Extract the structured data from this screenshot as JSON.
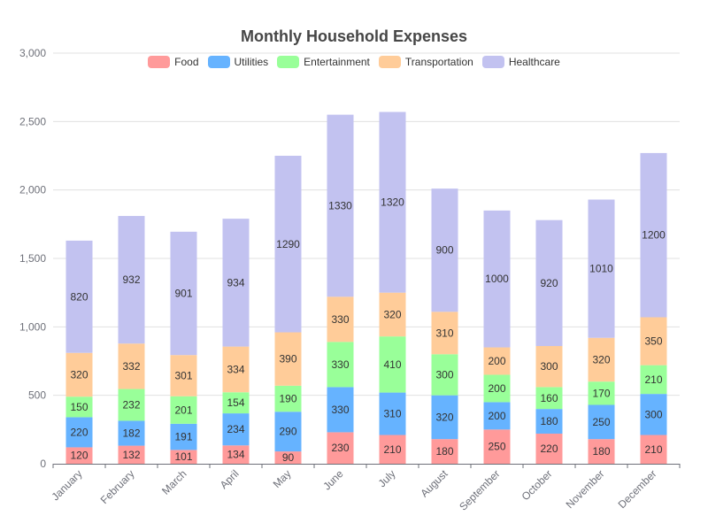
{
  "chart_data": {
    "type": "bar",
    "stacked": true,
    "title": "Monthly Household Expenses",
    "xlabel": "",
    "ylabel": "",
    "ylim": [
      0,
      3000
    ],
    "yticks": [
      0,
      500,
      1000,
      1500,
      2000,
      2500,
      3000
    ],
    "ytick_labels": [
      "0",
      "500",
      "1,000",
      "1,500",
      "2,000",
      "2,500",
      "3,000"
    ],
    "grid": true,
    "legend_position": "top",
    "categories": [
      "January",
      "February",
      "March",
      "April",
      "May",
      "June",
      "July",
      "August",
      "September",
      "October",
      "November",
      "December"
    ],
    "series": [
      {
        "name": "Food",
        "color": "#ff9a9a",
        "values": [
          120,
          132,
          101,
          134,
          90,
          230,
          210,
          180,
          250,
          220,
          180,
          210
        ]
      },
      {
        "name": "Utilities",
        "color": "#66b3ff",
        "values": [
          220,
          182,
          191,
          234,
          290,
          330,
          310,
          320,
          200,
          180,
          250,
          300
        ]
      },
      {
        "name": "Entertainment",
        "color": "#99ff99",
        "values": [
          150,
          232,
          201,
          154,
          190,
          330,
          410,
          300,
          200,
          160,
          170,
          210
        ]
      },
      {
        "name": "Transportation",
        "color": "#ffcc99",
        "values": [
          320,
          332,
          301,
          334,
          390,
          330,
          320,
          310,
          200,
          300,
          320,
          350
        ]
      },
      {
        "name": "Healthcare",
        "color": "#c2c2f0",
        "values": [
          820,
          932,
          901,
          934,
          1290,
          1330,
          1320,
          900,
          1000,
          920,
          1010,
          1200
        ]
      }
    ]
  }
}
